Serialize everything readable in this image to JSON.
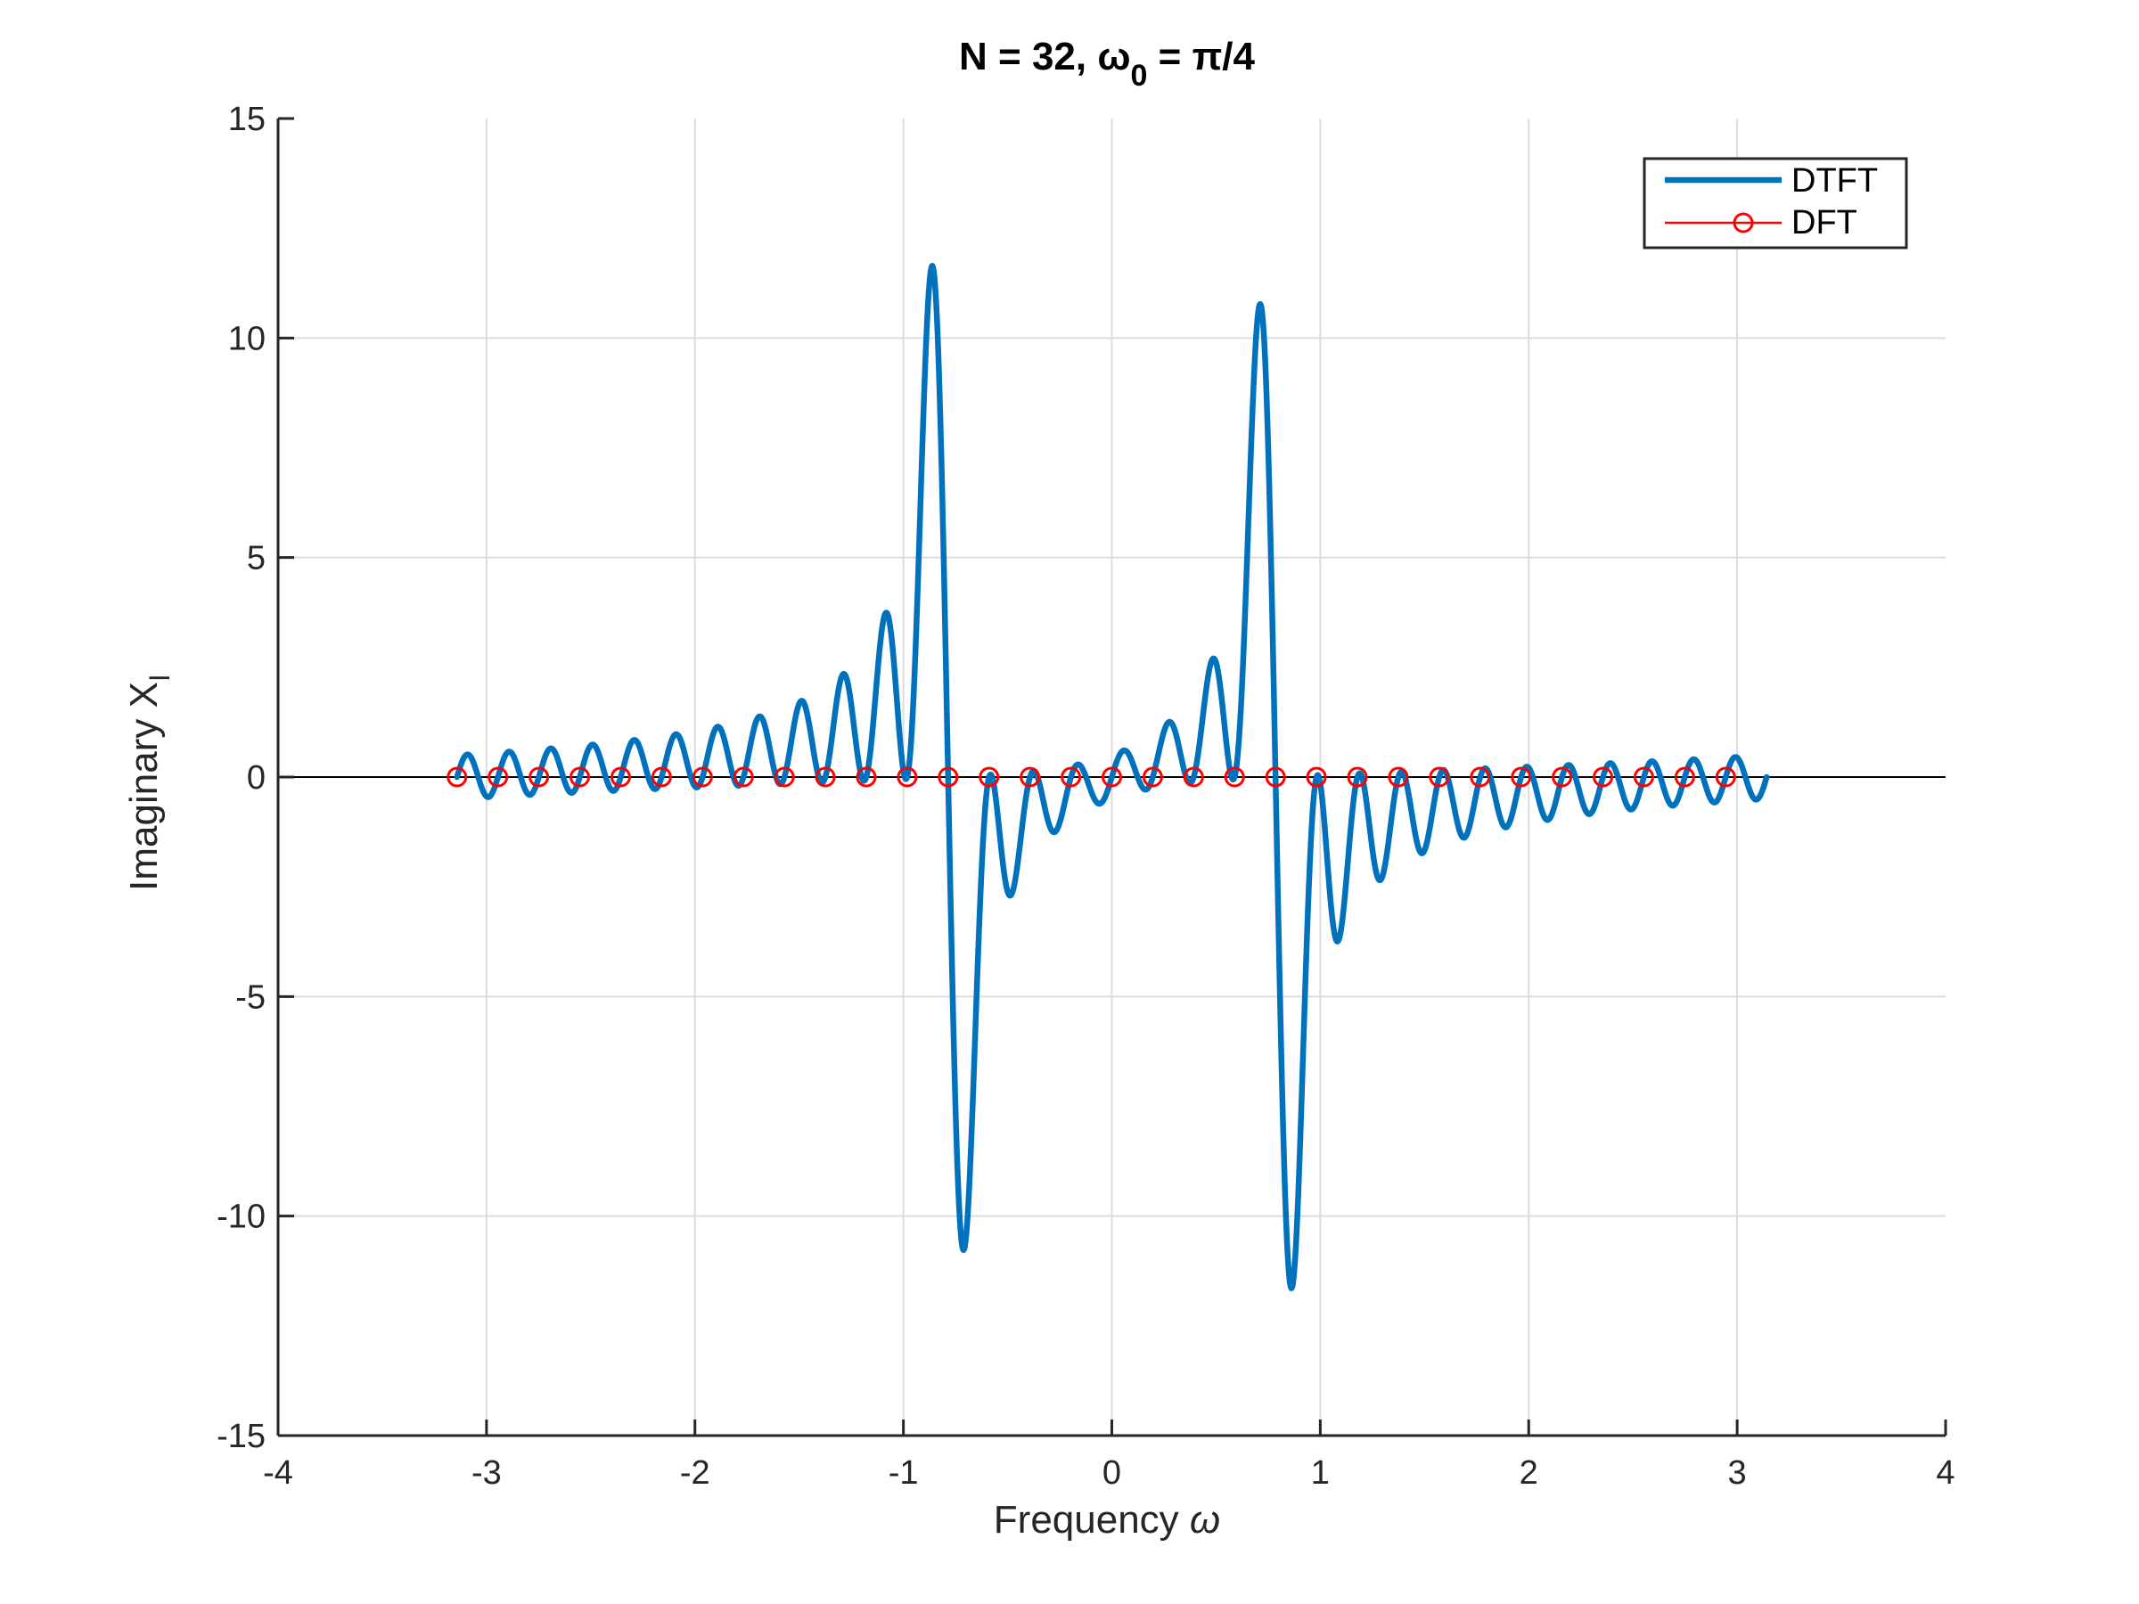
{
  "chart_data": {
    "type": "line",
    "title": "N = 32, ω0 = π/4",
    "title_parts": {
      "main": "N = 32, ω",
      "subscript": "0",
      "suffix": " = π/4"
    },
    "xlabel": "Frequency ω",
    "xlabel_parts": {
      "main": "Frequency ",
      "symbol": "ω"
    },
    "ylabel": "Imaginary XI",
    "ylabel_parts": {
      "main": "Imaginary X",
      "subscript": "I"
    },
    "xlim": [
      -4,
      4
    ],
    "ylim": [
      -15,
      15
    ],
    "x_ticks": [
      -4,
      -3,
      -2,
      -1,
      0,
      1,
      2,
      3,
      4
    ],
    "x_tick_labels": [
      "-4",
      "-3",
      "-2",
      "-1",
      "0",
      "1",
      "2",
      "3",
      "4"
    ],
    "y_ticks": [
      -15,
      -10,
      -5,
      0,
      5,
      10,
      15
    ],
    "y_tick_labels": [
      "-15",
      "-10",
      "-5",
      "0",
      "5",
      "10",
      "15"
    ],
    "grid": true,
    "legend_position": "top-right",
    "series": [
      {
        "name": "DTFT",
        "color": "#0072BD",
        "style": "solid-thick",
        "model": "imaginary part of DTFT of 32-point x[n] = cos(π n / 4) = -1/2·[D(ω − π/4) + D(ω + π/4)], D(θ) = sin(16θ)/sin(θ/2)·sin(15.5θ) − ... evaluated over ω ∈ [−π, π]",
        "N": 32,
        "omega0": 0.7853981633974483,
        "x_range": [
          -3.14159,
          3.14159
        ],
        "peaks": [
          {
            "x": -0.88,
            "y": 11.6
          },
          {
            "x": -0.71,
            "y": -10.7
          },
          {
            "x": 0.71,
            "y": 10.7
          },
          {
            "x": 0.88,
            "y": -11.6
          }
        ]
      },
      {
        "name": "DFT",
        "color": "#FF0000",
        "style": "stem-circle",
        "x": [
          -3.1416,
          -2.9452,
          -2.7489,
          -2.5525,
          -2.3562,
          -2.1598,
          -1.9635,
          -1.7671,
          -1.5708,
          -1.3744,
          -1.1781,
          -0.9817,
          -0.7854,
          -0.589,
          -0.3927,
          -0.1963,
          0.0,
          0.1963,
          0.3927,
          0.589,
          0.7854,
          0.9817,
          1.1781,
          1.3744,
          1.5708,
          1.7671,
          1.9635,
          2.1598,
          2.3562,
          2.5525,
          2.7489,
          2.9452
        ],
        "y": [
          0,
          0,
          0,
          0,
          0,
          0,
          0,
          0,
          0,
          0,
          0,
          0,
          0,
          0,
          0,
          0,
          0,
          0,
          0,
          0,
          0,
          0,
          0,
          0,
          0,
          0,
          0,
          0,
          0,
          0,
          0,
          0
        ]
      }
    ],
    "zero_line": {
      "y": 0,
      "x_range": [
        -4,
        4
      ],
      "color": "#000000"
    }
  }
}
